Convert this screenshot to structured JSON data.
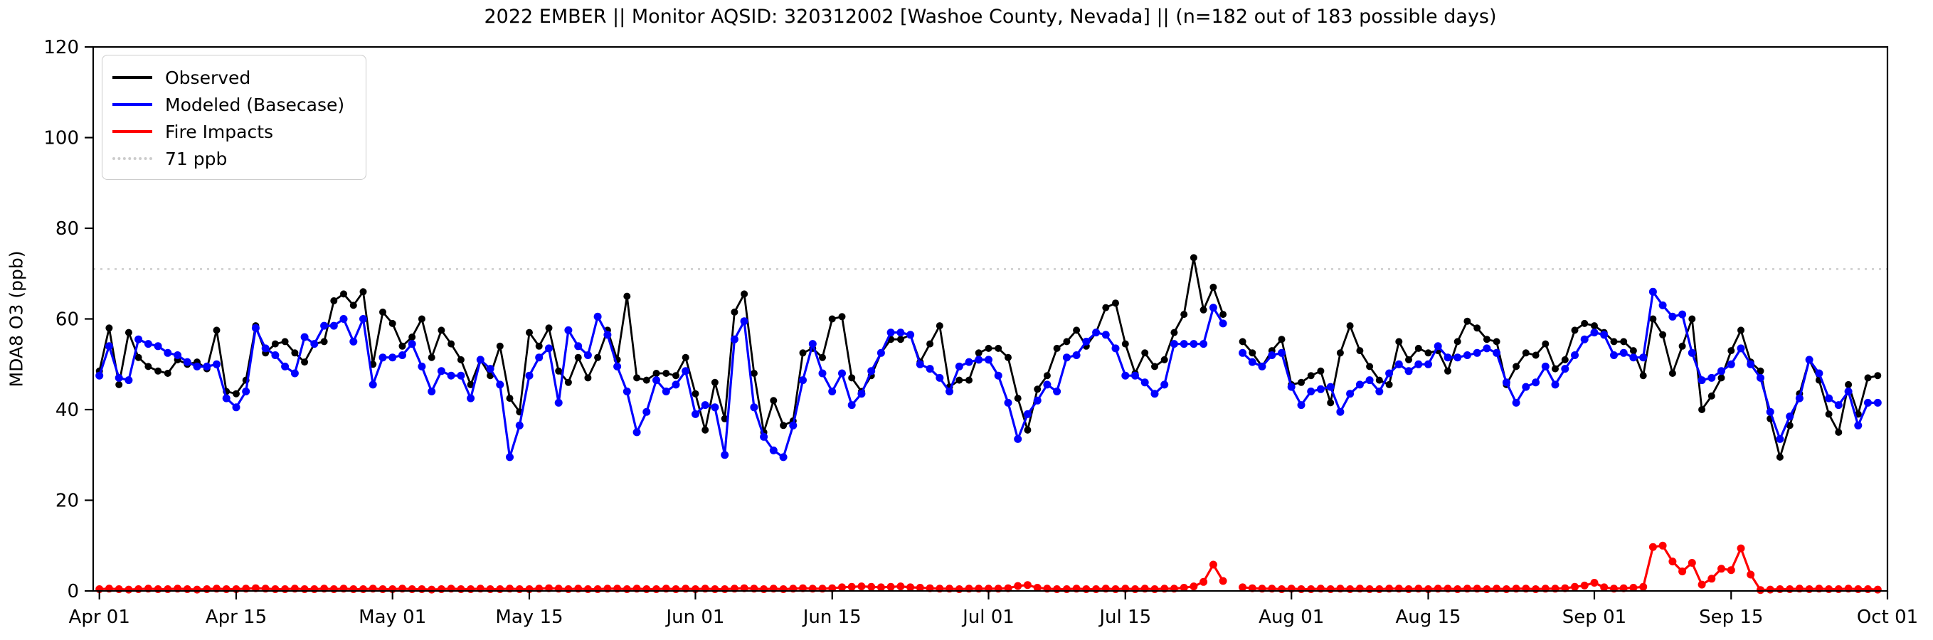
{
  "title": "2022 EMBER || Monitor AQSID: 320312002 [Washoe County, Nevada] || (n=182 out of 183 possible days)",
  "y_axis": {
    "label": "MDA8 O3 (ppb)",
    "ticks": [
      0,
      20,
      40,
      60,
      80,
      100,
      120
    ],
    "min": 0,
    "max": 120
  },
  "x_axis": {
    "ticks": [
      {
        "label": "Apr 01",
        "day": 0
      },
      {
        "label": "Apr 15",
        "day": 14
      },
      {
        "label": "May 01",
        "day": 30
      },
      {
        "label": "May 15",
        "day": 44
      },
      {
        "label": "Jun 01",
        "day": 61
      },
      {
        "label": "Jun 15",
        "day": 75
      },
      {
        "label": "Jul 01",
        "day": 91
      },
      {
        "label": "Jul 15",
        "day": 105
      },
      {
        "label": "Aug 01",
        "day": 122
      },
      {
        "label": "Aug 15",
        "day": 136
      },
      {
        "label": "Sep 01",
        "day": 153
      },
      {
        "label": "Sep 15",
        "day": 167
      },
      {
        "label": "Oct 01",
        "day": 183
      }
    ]
  },
  "legend": {
    "items": [
      {
        "label": "Observed",
        "color": "#000000",
        "style": "solid"
      },
      {
        "label": "Modeled (Basecase)",
        "color": "#0000ff",
        "style": "solid"
      },
      {
        "label": "Fire Impacts",
        "color": "#ff0000",
        "style": "solid"
      },
      {
        "label": "71 ppb",
        "color": "#cccccc",
        "style": "dotted"
      }
    ]
  },
  "chart_data": {
    "type": "line",
    "title": "2022 EMBER || Monitor AQSID: 320312002 [Washoe County, Nevada] || (n=182 out of 183 possible days)",
    "xlabel": "",
    "ylabel": "MDA8 O3 (ppb)",
    "ylim": [
      0,
      120
    ],
    "grid": false,
    "legend_position": "upper left",
    "start_date": "2022-04-01",
    "end_date": "2022-09-30",
    "n_days_with_data": 182,
    "n_possible_days": 183,
    "missing_date": "2022-07-26",
    "threshold": {
      "label": "71 ppb",
      "value": 71,
      "color": "#cccccc",
      "style": "dotted"
    },
    "series": [
      {
        "name": "Observed",
        "color": "#000000",
        "marker": "circle",
        "values": [
          48.5,
          58,
          45.5,
          57,
          51.5,
          49.5,
          48.5,
          48,
          51,
          50,
          50.5,
          49,
          57.5,
          44,
          43.5,
          46.5,
          58.5,
          52.5,
          54.5,
          55,
          52.5,
          50.5,
          54.5,
          55,
          64,
          65.5,
          63,
          66,
          50,
          61.5,
          59,
          54,
          56,
          60,
          51.5,
          57.5,
          54.5,
          51,
          45.5,
          51,
          47.5,
          54,
          42.5,
          39.5,
          57,
          54,
          58,
          48.5,
          46,
          51.5,
          47,
          51.5,
          57.5,
          51,
          65,
          47,
          46.5,
          48,
          48,
          47.5,
          51.5,
          43.5,
          35.5,
          46,
          38,
          61.5,
          65.5,
          48,
          35,
          42,
          36.5,
          37.5,
          52.5,
          53.5,
          51.5,
          60,
          60.5,
          47,
          44,
          47.5,
          52.5,
          55.5,
          55.5,
          56.5,
          50.5,
          54.5,
          58.5,
          45,
          46.5,
          46.5,
          52.5,
          53.5,
          53.5,
          51.5,
          42.5,
          35.5,
          44.5,
          47.5,
          53.5,
          55,
          57.5,
          54,
          57,
          62.5,
          63.5,
          54.5,
          48,
          52.5,
          49.5,
          51,
          57,
          61,
          73.5,
          62,
          67,
          61,
          null,
          55,
          52.5,
          49.5,
          53,
          55.5,
          45.5,
          46,
          47.5,
          48.5,
          41.5,
          52.5,
          58.5,
          53,
          49.5,
          46.5,
          45.5,
          55,
          51,
          53.5,
          52.5,
          53,
          48.5,
          55,
          59.5,
          58,
          55.5,
          55,
          45.5,
          49.5,
          52.5,
          52,
          54.5,
          49,
          51,
          57.5,
          59,
          58.5,
          57,
          55,
          55,
          53,
          47.5,
          60,
          56.5,
          48,
          54,
          60,
          40,
          43,
          47,
          53,
          57.5,
          50.5,
          48.5,
          38,
          29.5,
          36.5,
          43.5,
          51,
          46.5,
          39,
          35,
          45.5,
          39,
          47,
          47.5
        ]
      },
      {
        "name": "Modeled (Basecase)",
        "color": "#0000ff",
        "marker": "circle",
        "values": [
          47.5,
          54,
          47,
          46.5,
          55.5,
          54.5,
          54,
          52.5,
          52,
          50.5,
          49.5,
          49.5,
          50,
          42.5,
          40.5,
          44,
          58,
          53.5,
          52,
          49.5,
          48,
          56,
          54.5,
          58.5,
          58.5,
          60,
          55,
          60,
          45.5,
          51.5,
          51.5,
          52,
          54.5,
          49.5,
          44,
          48.5,
          47.5,
          47.5,
          42.5,
          51,
          49,
          45.5,
          29.5,
          36.5,
          47.5,
          51.5,
          53.5,
          41.5,
          57.5,
          54,
          52,
          60.5,
          56.5,
          49.5,
          44,
          35,
          39.5,
          46.5,
          44,
          45.5,
          48.5,
          39,
          41,
          40.5,
          30,
          55.5,
          59.5,
          40.5,
          34,
          31,
          29.5,
          36.5,
          46.5,
          54.5,
          48,
          44,
          48,
          41,
          43.5,
          48.5,
          52.5,
          57,
          57,
          56.5,
          50,
          49,
          47,
          44,
          49.5,
          50.5,
          51,
          51,
          47.5,
          41.5,
          33.5,
          39,
          42,
          45.5,
          44,
          51.5,
          52,
          55,
          57,
          56.5,
          53.5,
          47.5,
          47.5,
          46,
          43.5,
          45.5,
          54.5,
          54.5,
          54.5,
          54.5,
          62.5,
          59,
          null,
          52.5,
          50.5,
          49.5,
          52,
          52.5,
          45,
          41,
          44,
          44.5,
          45,
          39.5,
          43.5,
          45.5,
          46.5,
          44,
          48,
          50,
          48.5,
          50,
          50,
          54,
          51.5,
          51.5,
          52,
          52.5,
          53.5,
          52.5,
          46,
          41.5,
          45,
          46,
          49.5,
          45.5,
          49,
          52,
          55.5,
          57,
          56.5,
          52,
          52.5,
          51.5,
          51.5,
          66,
          63,
          60.5,
          61,
          52.5,
          46.5,
          47,
          48.5,
          50,
          53.5,
          50,
          47,
          39.5,
          33.5,
          38.5,
          42.5,
          51,
          48,
          42.5,
          41,
          44,
          36.5,
          41.5,
          41.5
        ]
      },
      {
        "name": "Fire Impacts",
        "color": "#ff0000",
        "marker": "circle",
        "values": [
          0.4,
          0.5,
          0.4,
          0.3,
          0.4,
          0.5,
          0.4,
          0.4,
          0.5,
          0.4,
          0.3,
          0.4,
          0.5,
          0.4,
          0.4,
          0.5,
          0.6,
          0.5,
          0.4,
          0.4,
          0.5,
          0.4,
          0.4,
          0.5,
          0.4,
          0.5,
          0.4,
          0.4,
          0.5,
          0.4,
          0.4,
          0.5,
          0.4,
          0.4,
          0.3,
          0.4,
          0.5,
          0.4,
          0.4,
          0.5,
          0.4,
          0.4,
          0.5,
          0.4,
          0.4,
          0.5,
          0.6,
          0.5,
          0.4,
          0.5,
          0.4,
          0.4,
          0.5,
          0.5,
          0.4,
          0.5,
          0.4,
          0.4,
          0.5,
          0.4,
          0.5,
          0.4,
          0.5,
          0.4,
          0.4,
          0.5,
          0.6,
          0.5,
          0.4,
          0.5,
          0.4,
          0.5,
          0.6,
          0.5,
          0.5,
          0.6,
          0.8,
          0.9,
          1.0,
          0.9,
          0.8,
          0.9,
          1.0,
          0.8,
          0.7,
          0.6,
          0.5,
          0.5,
          0.4,
          0.5,
          0.5,
          0.5,
          0.5,
          0.6,
          1.1,
          1.3,
          0.7,
          0.5,
          0.4,
          0.4,
          0.5,
          0.4,
          0.4,
          0.5,
          0.4,
          0.5,
          0.4,
          0.5,
          0.4,
          0.5,
          0.5,
          0.7,
          1.0,
          2.0,
          5.8,
          2.2,
          null,
          0.8,
          0.6,
          0.5,
          0.5,
          0.4,
          0.5,
          0.4,
          0.4,
          0.5,
          0.4,
          0.5,
          0.4,
          0.5,
          0.4,
          0.4,
          0.5,
          0.5,
          0.4,
          0.5,
          0.4,
          0.5,
          0.5,
          0.4,
          0.5,
          0.5,
          0.4,
          0.5,
          0.4,
          0.5,
          0.5,
          0.4,
          0.5,
          0.5,
          0.6,
          0.9,
          1.2,
          1.8,
          0.8,
          0.5,
          0.6,
          0.7,
          0.9,
          9.7,
          10.0,
          6.5,
          4.3,
          6.2,
          1.4,
          2.7,
          4.9,
          4.6,
          9.4,
          3.6,
          0.2,
          0.3,
          0.4,
          0.4,
          0.5,
          0.4,
          0.5,
          0.4,
          0.4,
          0.5,
          0.4,
          0.4,
          0.3
        ]
      }
    ]
  }
}
